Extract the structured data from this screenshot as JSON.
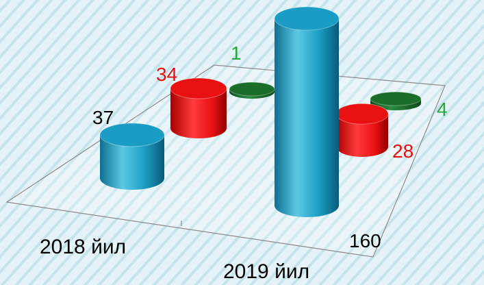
{
  "chart_data": {
    "type": "bar",
    "categories": [
      "2018 йил",
      "2019 йил"
    ],
    "series": [
      {
        "color": "#1a9cc4",
        "values": [
          37,
          160
        ]
      },
      {
        "color": "#e81010",
        "values": [
          34,
          28
        ]
      },
      {
        "color": "#1a6e2a",
        "values": [
          1,
          4
        ]
      }
    ],
    "label_colors": [
      "#000000",
      "#e81010",
      "#22a83c"
    ],
    "ylim": [
      0,
      170
    ],
    "grid": false,
    "legend": "none"
  }
}
